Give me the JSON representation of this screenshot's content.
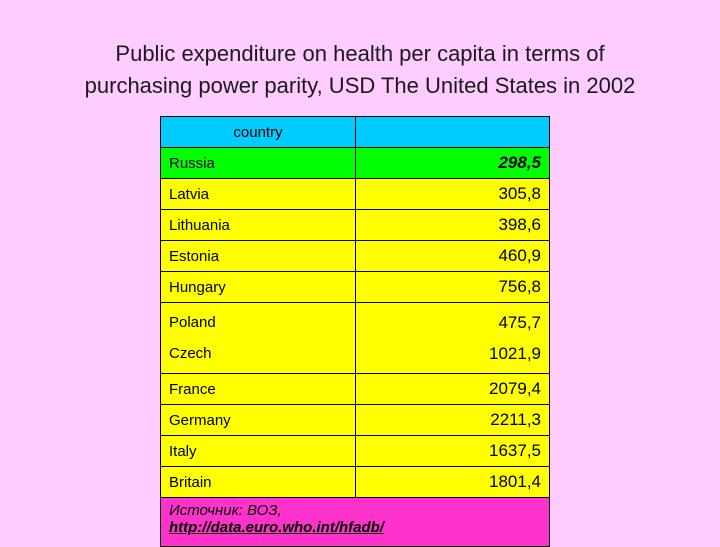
{
  "title_line1": "Public expenditure on health per capita in terms of",
  "title_line2": "purchasing power parity, USD The United States in 2002",
  "table": {
    "header": [
      "country",
      ""
    ],
    "rows": [
      {
        "country": "Russia",
        "value": "298,5"
      },
      {
        "country": "Latvia",
        "value": "305,8"
      },
      {
        "country": "Lithuania",
        "value": "398,6"
      },
      {
        "country": "Estonia",
        "value": "460,9"
      },
      {
        "country": "Hungary",
        "value": "756,8"
      },
      {
        "country": "Poland",
        "value": "475,7"
      },
      {
        "country": "Czech",
        "value": "1021,9"
      },
      {
        "country": "France",
        "value": "2079,4"
      },
      {
        "country": "Germany",
        "value": "2211,3"
      },
      {
        "country": "Italy",
        "value": "1637,5"
      },
      {
        "country": "Britain",
        "value": "1801,4"
      }
    ],
    "source_label": "Источник: ВОЗ,",
    "source_url": "http://data.euro.who.int/hfadb/"
  },
  "colors": {
    "background": "#ffccff",
    "header": "#00ccff",
    "highlight": "#00ff00",
    "rows": "#ffff00",
    "source": "#ff33cc"
  }
}
